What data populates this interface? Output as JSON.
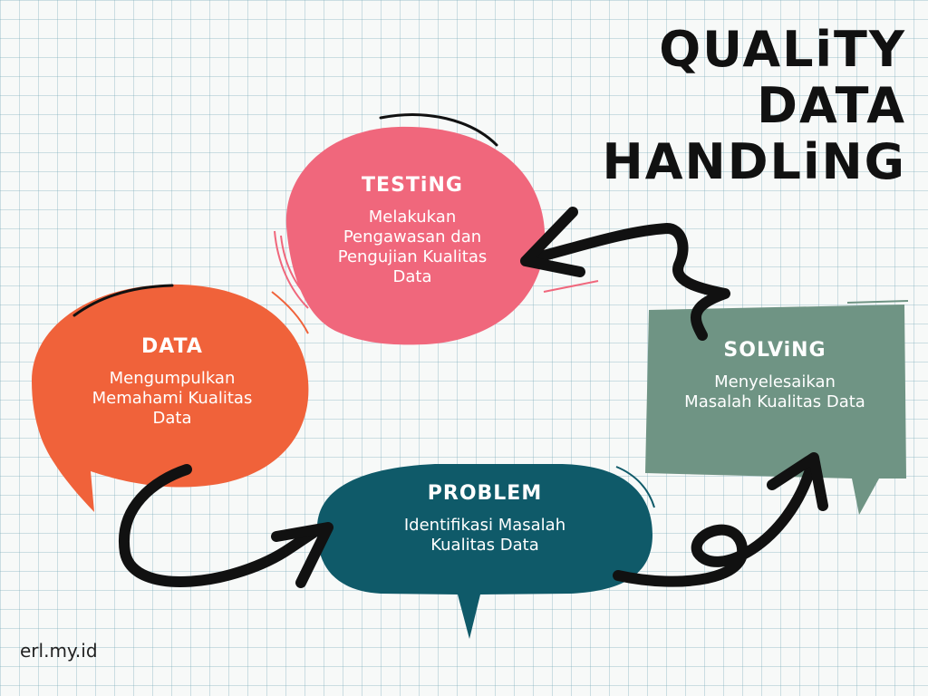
{
  "title_lines": [
    "QUALiTY",
    "DATA",
    "HANDLiNG"
  ],
  "nodes": {
    "testing": {
      "label": "TESTiNG",
      "desc": [
        "Melakukan",
        "Pengawasan dan",
        "Pengujian Kualitas",
        "Data"
      ],
      "color": "#f0677c"
    },
    "data": {
      "label": "DATA",
      "desc": [
        "Mengumpulkan",
        "Memahami Kualitas",
        "Data"
      ],
      "color": "#f0623a"
    },
    "problem": {
      "label": "PROBLEM",
      "desc": [
        "Identifikasi Masalah",
        "Kualitas Data"
      ],
      "color": "#0f5a69"
    },
    "solving": {
      "label": "SOLViNG",
      "desc": [
        "Menyelesaikan",
        "Masalah Kualitas Data"
      ],
      "color": "#6f9484"
    }
  },
  "watermark": "erl.my.id"
}
